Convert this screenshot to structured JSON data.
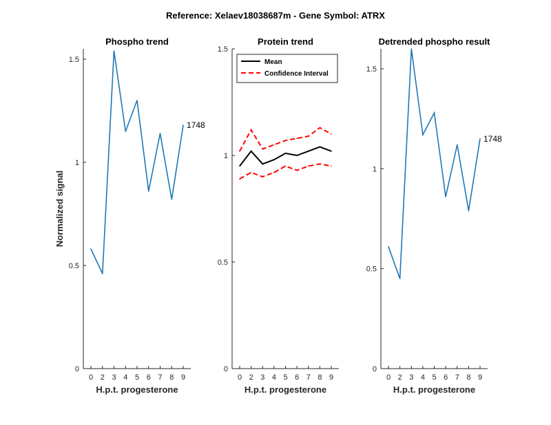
{
  "figure_title": "Reference:  Xelaev18038687m - Gene Symbol:  ATRX",
  "colors": {
    "blue": "#1f77b4",
    "mean": "#000000",
    "ci": "#ff0000",
    "axis": "#262626"
  },
  "chart_data": [
    {
      "type": "line",
      "title": "Phospho trend",
      "xlabel": "H.p.t. progesterone",
      "ylabel": "Normalized signal",
      "x_ticks": [
        "0",
        "2",
        "3",
        "4",
        "5",
        "6",
        "7",
        "8",
        "9"
      ],
      "ylim": [
        0,
        1.55
      ],
      "y_ticks": [
        0,
        0.5,
        1,
        1.5
      ],
      "y_tick_labels": [
        "0",
        "0.5",
        "1",
        "1.5"
      ],
      "series": [
        {
          "values": [
            0.58,
            0.46,
            1.54,
            1.15,
            1.3,
            0.86,
            1.14,
            0.82,
            1.18
          ],
          "color": "#1f77b4"
        }
      ],
      "annotation": "1748"
    },
    {
      "type": "line",
      "title": "Protein trend",
      "xlabel": "H.p.t. progesterone",
      "ylabel": "",
      "x_ticks": [
        "0",
        "2",
        "3",
        "4",
        "5",
        "6",
        "7",
        "8",
        "9"
      ],
      "ylim": [
        0,
        1.5
      ],
      "y_ticks": [
        0,
        0.5,
        1,
        1.5
      ],
      "y_tick_labels": [
        "0",
        "0.5",
        "1",
        "1.5"
      ],
      "legend": "top-left",
      "series": [
        {
          "name": "Mean",
          "values": [
            0.95,
            1.02,
            0.96,
            0.98,
            1.01,
            1.0,
            1.02,
            1.04,
            1.02
          ],
          "color": "#000000",
          "style": "solid"
        },
        {
          "name": "Confidence Interval",
          "values": [
            1.02,
            1.12,
            1.03,
            1.05,
            1.07,
            1.08,
            1.09,
            1.13,
            1.1
          ],
          "color": "#ff0000",
          "style": "dashed"
        },
        {
          "values": [
            0.89,
            0.92,
            0.9,
            0.92,
            0.95,
            0.93,
            0.95,
            0.96,
            0.95
          ],
          "color": "#ff0000",
          "style": "dashed"
        }
      ]
    },
    {
      "type": "line",
      "title": "Detrended phospho result",
      "xlabel": "H.p.t. progesterone",
      "ylabel": "",
      "x_ticks": [
        "0",
        "2",
        "3",
        "4",
        "5",
        "6",
        "7",
        "8",
        "9"
      ],
      "ylim": [
        0,
        1.6
      ],
      "y_ticks": [
        0,
        0.5,
        1,
        1.5
      ],
      "y_tick_labels": [
        "0",
        "0.5",
        "1",
        "1.5"
      ],
      "series": [
        {
          "values": [
            0.61,
            0.45,
            1.6,
            1.17,
            1.28,
            0.86,
            1.12,
            0.79,
            1.15
          ],
          "color": "#1f77b4"
        }
      ],
      "annotation": "1748"
    }
  ]
}
